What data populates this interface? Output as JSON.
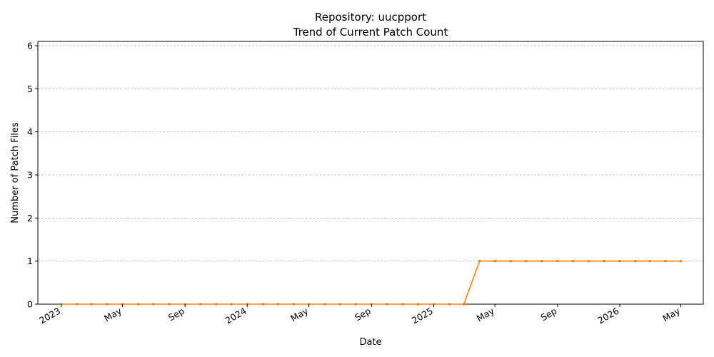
{
  "chart_data": {
    "type": "line",
    "title": "Repository: uucpport",
    "subtitle": "Trend of Current Patch Count",
    "xlabel": "Date",
    "ylabel": "Number of Patch Files",
    "ylim": [
      0,
      6.1
    ],
    "xlim": [
      "2022-11-16",
      "2026-06-14"
    ],
    "grid": "y-dashed",
    "yticks": [
      0,
      1,
      2,
      3,
      4,
      5,
      6
    ],
    "xticks": [
      {
        "date": "2023-01-01",
        "label": "2023"
      },
      {
        "date": "2023-05-01",
        "label": "May"
      },
      {
        "date": "2023-09-01",
        "label": "Sep"
      },
      {
        "date": "2024-01-01",
        "label": "2024"
      },
      {
        "date": "2024-05-01",
        "label": "May"
      },
      {
        "date": "2024-09-01",
        "label": "Sep"
      },
      {
        "date": "2025-01-01",
        "label": "2025"
      },
      {
        "date": "2025-05-01",
        "label": "May"
      },
      {
        "date": "2025-09-01",
        "label": "Sep"
      },
      {
        "date": "2026-01-01",
        "label": "2026"
      },
      {
        "date": "2026-05-01",
        "label": "May"
      }
    ],
    "series": [
      {
        "color": "#ff7f0e",
        "x": [
          "2023-01-01",
          "2023-02-01",
          "2023-03-01",
          "2023-04-01",
          "2023-05-01",
          "2023-06-01",
          "2023-07-01",
          "2023-08-01",
          "2023-09-01",
          "2023-10-01",
          "2023-11-01",
          "2023-12-01",
          "2024-01-01",
          "2024-02-01",
          "2024-03-01",
          "2024-04-01",
          "2024-05-01",
          "2024-06-01",
          "2024-07-01",
          "2024-08-01",
          "2024-09-01",
          "2024-10-01",
          "2024-11-01",
          "2024-12-01",
          "2025-01-01",
          "2025-02-01",
          "2025-03-01",
          "2025-04-01",
          "2025-05-01",
          "2025-06-01",
          "2025-07-01",
          "2025-08-01",
          "2025-09-01",
          "2025-10-01",
          "2025-11-01",
          "2025-12-01",
          "2026-01-01",
          "2026-02-01",
          "2026-03-01",
          "2026-04-01",
          "2026-05-01"
        ],
        "values": [
          0,
          0,
          0,
          0,
          0,
          0,
          0,
          0,
          0,
          0,
          0,
          0,
          0,
          0,
          0,
          0,
          0,
          0,
          0,
          0,
          0,
          0,
          0,
          0,
          0,
          0,
          0,
          1,
          1,
          1,
          1,
          1,
          1,
          1,
          1,
          1,
          1,
          1,
          1,
          1,
          1
        ]
      }
    ]
  }
}
